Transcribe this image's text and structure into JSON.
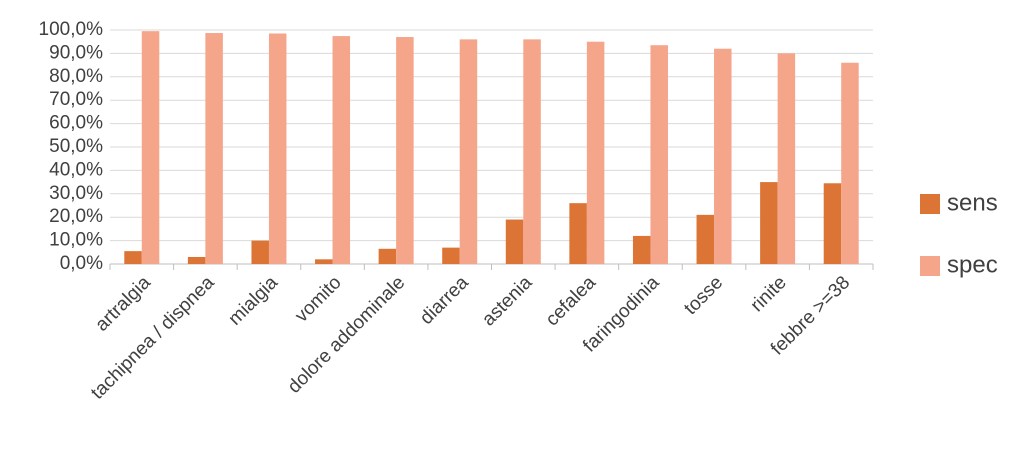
{
  "chart_data": {
    "type": "bar",
    "categories": [
      "artralgia",
      "tachipnea / dispnea",
      "mialgia",
      "vomito",
      "dolore addominale",
      "diarrea",
      "astenia",
      "cefalea",
      "faringodinia",
      "tosse",
      "rinite",
      "febbre >=38"
    ],
    "series": [
      {
        "name": "sens",
        "color": "#dc7435",
        "values": [
          5.5,
          3,
          10,
          2,
          6.5,
          7,
          19,
          26,
          12,
          21,
          35,
          34.5
        ]
      },
      {
        "name": "spec",
        "color": "#f4a58a",
        "values": [
          99.5,
          98.7,
          98.5,
          97.4,
          97,
          96,
          96,
          95,
          93.5,
          92,
          90,
          86
        ]
      }
    ],
    "ylim": [
      0,
      100
    ],
    "yticks": [
      {
        "value": 0,
        "label": "0,0%"
      },
      {
        "value": 10,
        "label": "10,0%"
      },
      {
        "value": 20,
        "label": "20,0%"
      },
      {
        "value": 30,
        "label": "30,0%"
      },
      {
        "value": 40,
        "label": "40,0%"
      },
      {
        "value": 50,
        "label": "50,0%"
      },
      {
        "value": 60,
        "label": "60,0%"
      },
      {
        "value": 70,
        "label": "70,0%"
      },
      {
        "value": 80,
        "label": "80,0%"
      },
      {
        "value": 90,
        "label": "90,0%"
      },
      {
        "value": 100,
        "label": "100,0%"
      }
    ],
    "grid": true,
    "legend": "right"
  }
}
